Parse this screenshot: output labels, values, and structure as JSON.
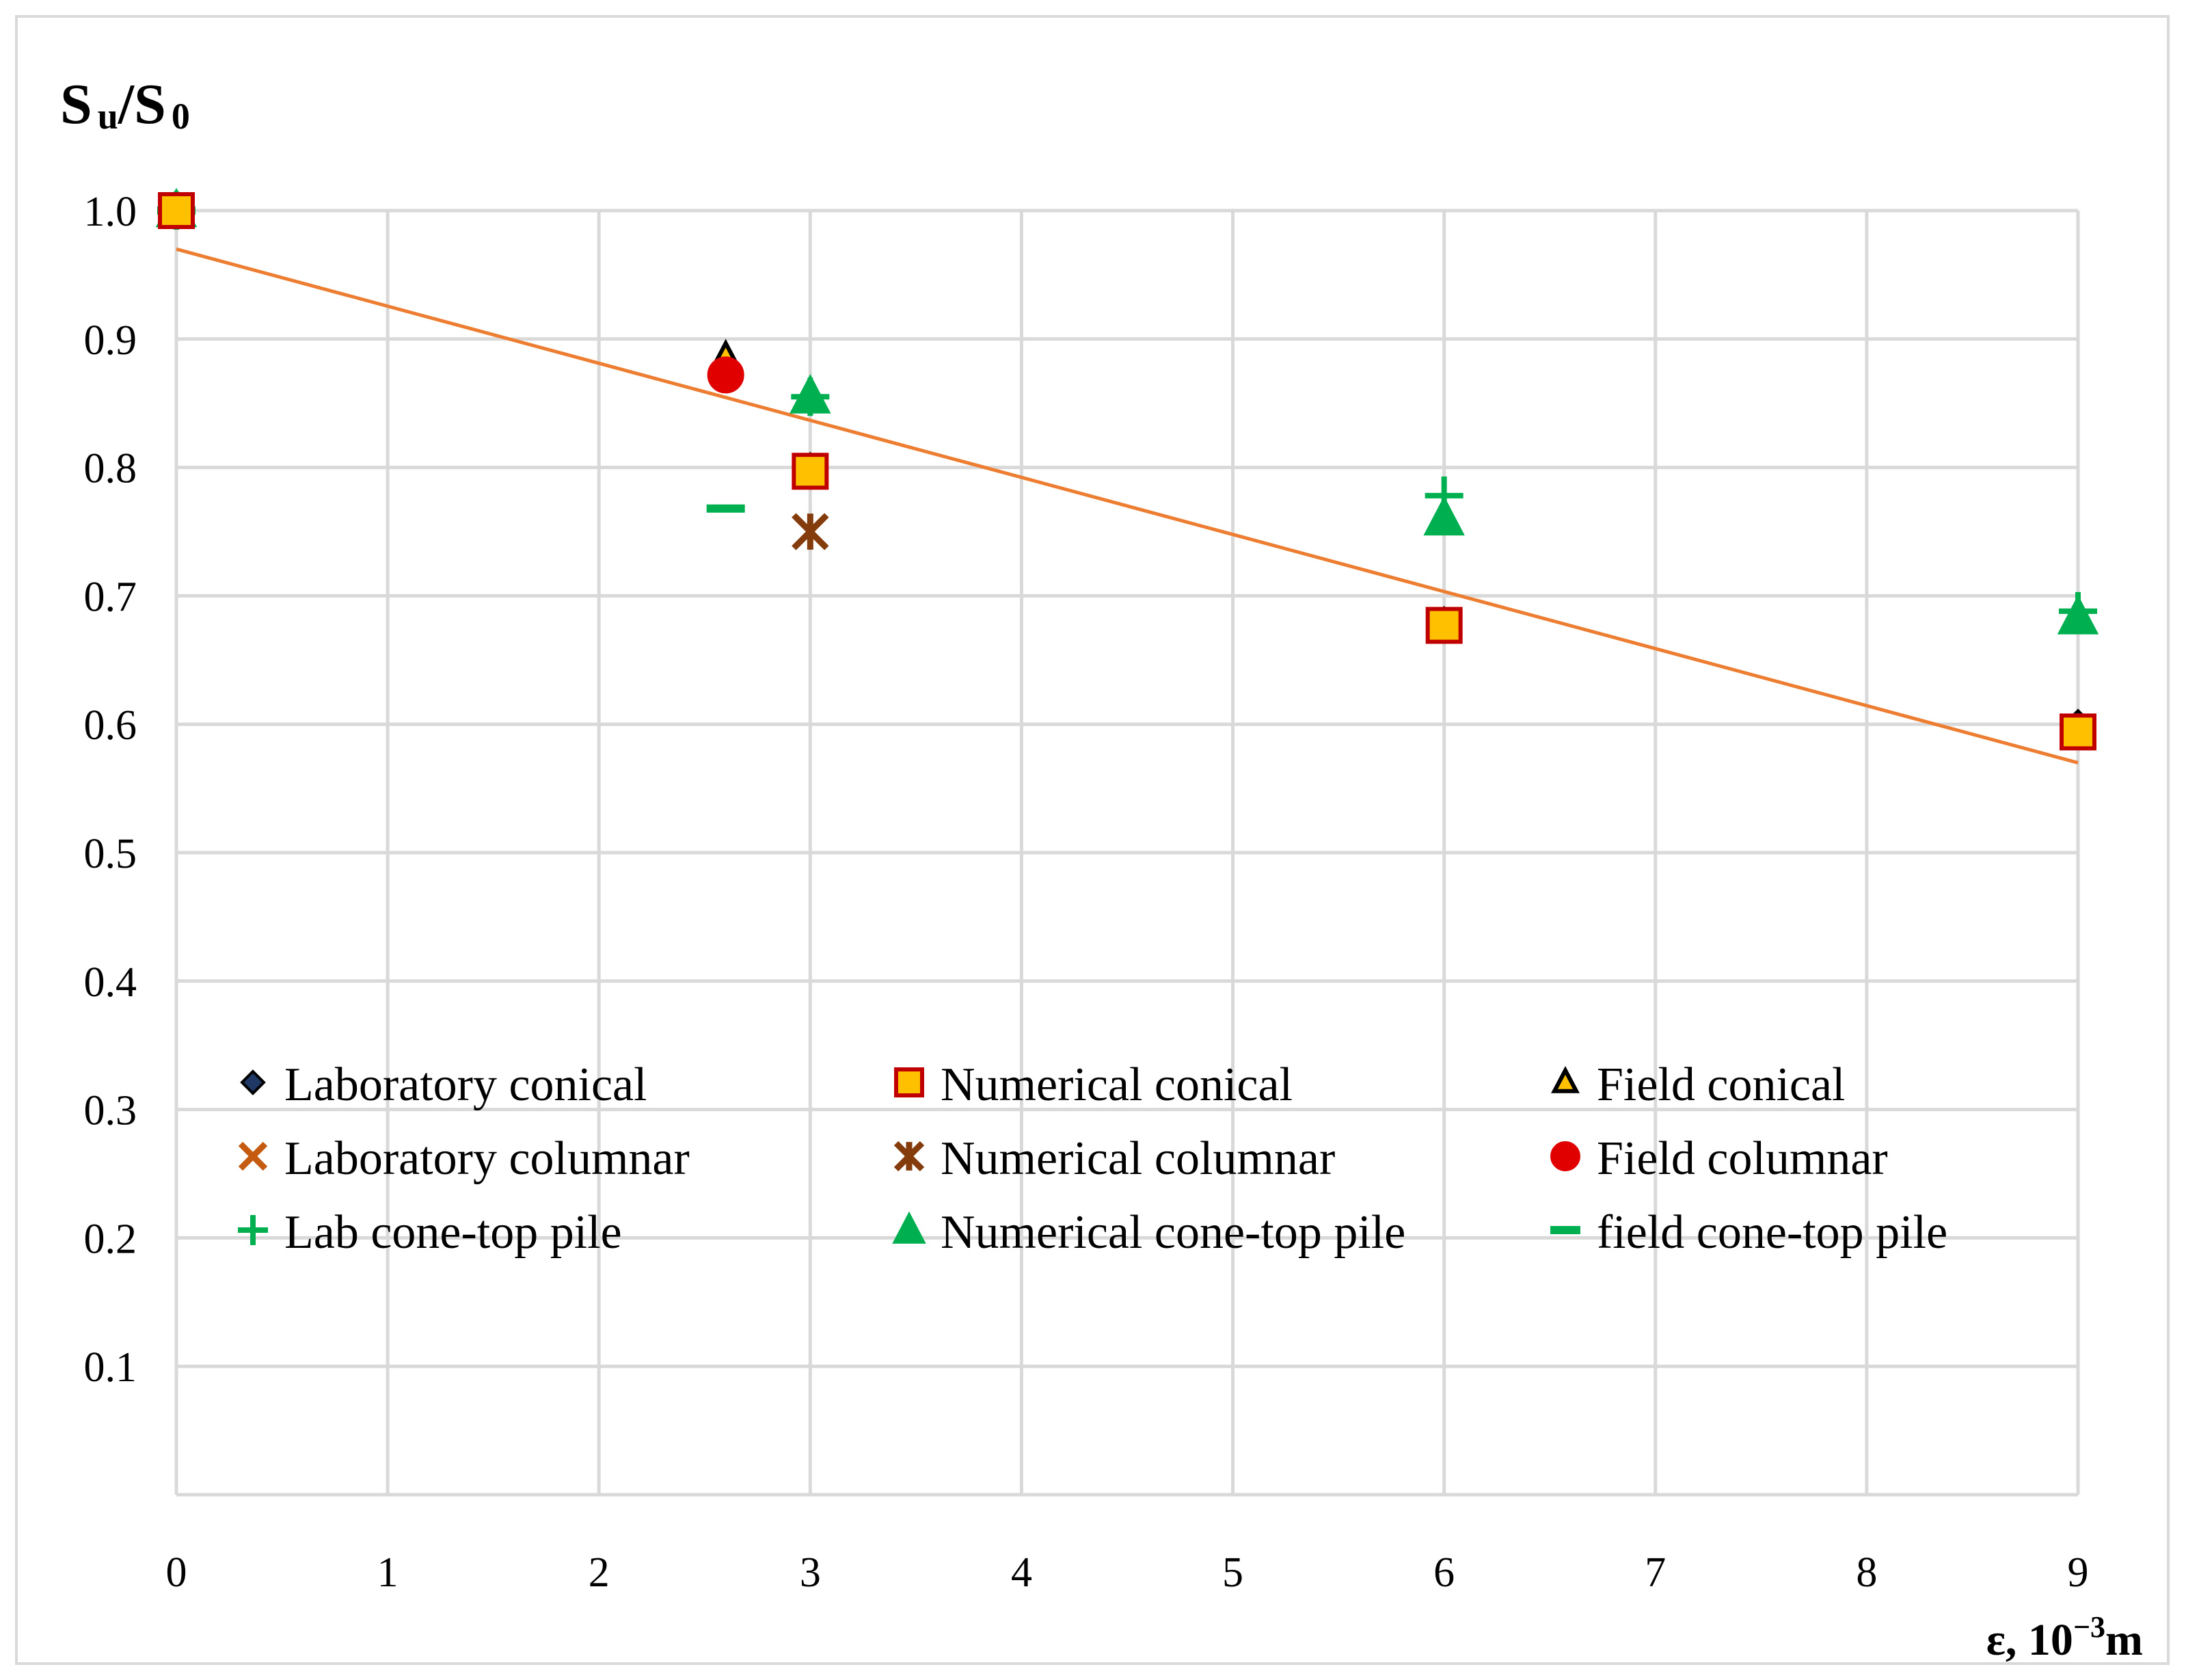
{
  "chart_data": {
    "type": "scatter",
    "title": "",
    "ylabel_main": "S",
    "ylabel_sub1": "u",
    "ylabel_mid": "/S",
    "ylabel_sub2": "0",
    "xlabel_main": "ε, 10",
    "xlabel_sup": "−3",
    "xlabel_unit": "m",
    "xlim": [
      0,
      9
    ],
    "ylim": [
      0,
      1.0
    ],
    "x_ticks": [
      "0",
      "1",
      "2",
      "3",
      "4",
      "5",
      "6",
      "7",
      "8",
      "9"
    ],
    "y_ticks": [
      "0.1",
      "0.2",
      "0.3",
      "0.4",
      "0.5",
      "0.6",
      "0.7",
      "0.8",
      "0.9",
      "1.0"
    ],
    "grid": true,
    "series": [
      {
        "name": "Laboratory conical",
        "marker": "diamond",
        "color": "#1f3864",
        "stroke": "#000000",
        "points": [
          [
            0,
            1.0
          ],
          [
            3,
            0.8
          ],
          [
            6,
            0.68
          ],
          [
            9,
            0.6
          ]
        ]
      },
      {
        "name": "Numerical conical",
        "marker": "square",
        "color": "#ffc000",
        "stroke": "#c00000",
        "points": [
          [
            0,
            1.0
          ],
          [
            3,
            0.797
          ],
          [
            6,
            0.677
          ],
          [
            9,
            0.594
          ]
        ]
      },
      {
        "name": "Field conical",
        "marker": "triangle-outline",
        "color": "#ffc000",
        "stroke": "#000000",
        "points": [
          [
            0,
            1.0
          ],
          [
            2.6,
            0.885
          ]
        ]
      },
      {
        "name": "Laboratory columnar",
        "marker": "x",
        "color": "#c55a11",
        "stroke": "#c55a11",
        "points": [
          [
            0,
            1.0
          ],
          [
            3,
            0.75
          ]
        ]
      },
      {
        "name": "Numerical columnar",
        "marker": "star",
        "color": "#843c0c",
        "stroke": "#843c0c",
        "points": [
          [
            0,
            1.0
          ],
          [
            3,
            0.75
          ]
        ]
      },
      {
        "name": "Field columnar",
        "marker": "circle",
        "color": "#e00000",
        "stroke": "#e00000",
        "points": [
          [
            0,
            1.0
          ],
          [
            2.6,
            0.872
          ]
        ]
      },
      {
        "name": "Lab cone-top pile",
        "marker": "plus",
        "color": "#00b050",
        "stroke": "#00b050",
        "points": [
          [
            0,
            1.0
          ],
          [
            3,
            0.855
          ],
          [
            6,
            0.778
          ],
          [
            9,
            0.688
          ]
        ]
      },
      {
        "name": "Numerical cone-top pile",
        "marker": "triangle",
        "color": "#00b050",
        "stroke": "#00b050",
        "points": [
          [
            0,
            1.0
          ],
          [
            3,
            0.855
          ],
          [
            6,
            0.76
          ],
          [
            9,
            0.683
          ]
        ]
      },
      {
        "name": "field cone-top pile",
        "marker": "dash",
        "color": "#00b050",
        "stroke": "#00b050",
        "points": [
          [
            0,
            1.0
          ],
          [
            2.6,
            0.768
          ]
        ]
      }
    ],
    "trendline": {
      "color": "#ed7d31",
      "x": [
        0,
        9
      ],
      "y": [
        0.97,
        0.57
      ]
    }
  }
}
